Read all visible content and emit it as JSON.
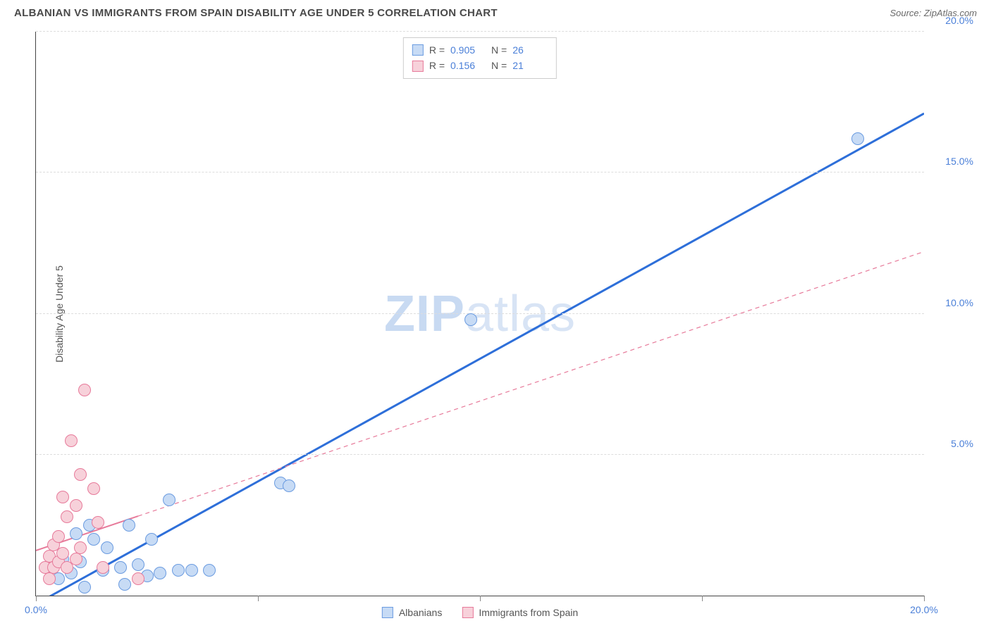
{
  "header": {
    "title": "ALBANIAN VS IMMIGRANTS FROM SPAIN DISABILITY AGE UNDER 5 CORRELATION CHART",
    "source": "Source: ZipAtlas.com"
  },
  "axes": {
    "y_label": "Disability Age Under 5",
    "xlim": [
      0,
      20
    ],
    "ylim": [
      0,
      20
    ],
    "x_ticks": [
      0,
      5,
      10,
      15,
      20
    ],
    "y_ticks": [
      5,
      10,
      15,
      20
    ],
    "x_tick_labels": {
      "0": "0.0%",
      "20": "20.0%"
    },
    "y_tick_labels": {
      "5": "5.0%",
      "10": "10.0%",
      "15": "15.0%",
      "20": "20.0%"
    },
    "grid_color": "#dddddd",
    "axis_color": "#444444",
    "tick_label_color": "#4a7fd8",
    "tick_label_fontsize": 14
  },
  "watermark": {
    "text1": "ZIP",
    "text2": "atlas"
  },
  "series": [
    {
      "name": "Albanians",
      "marker_fill": "#c7dbf5",
      "marker_stroke": "#6a9be0",
      "marker_radius": 9,
      "trend_color": "#2e6fd9",
      "trend_width": 3,
      "trend_dash": "none",
      "trend_solid_extent": [
        0,
        20
      ],
      "R": "0.905",
      "N": "26",
      "points": [
        [
          0.3,
          1.0
        ],
        [
          0.5,
          0.6
        ],
        [
          0.6,
          1.3
        ],
        [
          0.8,
          0.8
        ],
        [
          0.9,
          2.2
        ],
        [
          1.0,
          1.2
        ],
        [
          1.1,
          0.3
        ],
        [
          1.2,
          2.5
        ],
        [
          1.3,
          2.0
        ],
        [
          1.5,
          0.9
        ],
        [
          1.6,
          1.7
        ],
        [
          1.9,
          1.0
        ],
        [
          2.0,
          0.4
        ],
        [
          2.1,
          2.5
        ],
        [
          2.3,
          1.1
        ],
        [
          2.5,
          0.7
        ],
        [
          2.6,
          2.0
        ],
        [
          2.8,
          0.8
        ],
        [
          3.0,
          3.4
        ],
        [
          3.2,
          0.9
        ],
        [
          3.5,
          0.9
        ],
        [
          3.9,
          0.9
        ],
        [
          5.5,
          4.0
        ],
        [
          5.7,
          3.9
        ],
        [
          9.8,
          9.8
        ],
        [
          18.5,
          16.2
        ]
      ],
      "trend": {
        "x1": 0,
        "y1": -0.3,
        "x2": 20,
        "y2": 17.1
      }
    },
    {
      "name": "Immigrants from Spain",
      "marker_fill": "#f7d1da",
      "marker_stroke": "#e77a9a",
      "marker_radius": 9,
      "trend_color": "#e77a9a",
      "trend_width": 2,
      "trend_dash": "6,5",
      "trend_solid_extent": [
        0,
        2.3
      ],
      "R": "0.156",
      "N": "21",
      "points": [
        [
          0.2,
          1.0
        ],
        [
          0.3,
          1.4
        ],
        [
          0.3,
          0.6
        ],
        [
          0.4,
          1.8
        ],
        [
          0.4,
          1.0
        ],
        [
          0.5,
          2.1
        ],
        [
          0.5,
          1.2
        ],
        [
          0.6,
          3.5
        ],
        [
          0.6,
          1.5
        ],
        [
          0.7,
          2.8
        ],
        [
          0.7,
          1.0
        ],
        [
          0.8,
          5.5
        ],
        [
          0.9,
          3.2
        ],
        [
          0.9,
          1.3
        ],
        [
          1.0,
          4.3
        ],
        [
          1.0,
          1.7
        ],
        [
          1.1,
          7.3
        ],
        [
          1.3,
          3.8
        ],
        [
          1.4,
          2.6
        ],
        [
          1.5,
          1.0
        ],
        [
          2.3,
          0.6
        ]
      ],
      "trend": {
        "x1": 0,
        "y1": 1.6,
        "x2": 20,
        "y2": 12.2
      }
    }
  ],
  "stats_box": {
    "R_label": "R =",
    "N_label": "N ="
  },
  "legend": {
    "items": [
      "Albanians",
      "Immigrants from Spain"
    ]
  },
  "styling": {
    "background_color": "#ffffff",
    "title_color": "#4a4a4a",
    "title_fontsize": 15,
    "source_color": "#6a6a6a"
  }
}
